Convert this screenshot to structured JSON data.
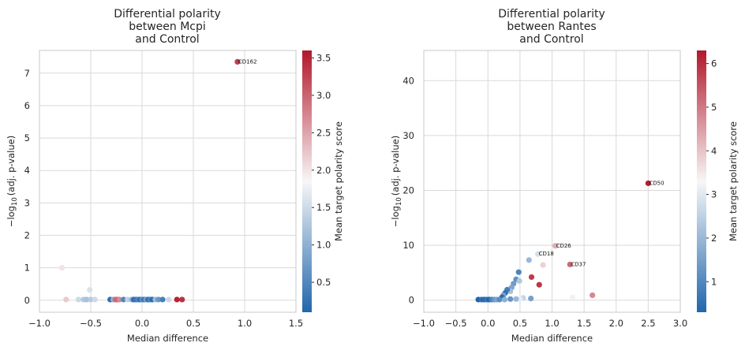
{
  "colors": {
    "low": "#2166ac",
    "mid": "#f7f7f7",
    "high": "#b2182b",
    "grid": "#d9d9d9",
    "spine": "#c8c8c8"
  },
  "chart_data": [
    {
      "type": "scatter",
      "title": [
        "Differential polarity",
        "between Mcpi",
        "and Control"
      ],
      "xlabel": "Median difference",
      "ylabel_prefix": "−log",
      "ylabel_sub": "10",
      "ylabel_suffix": "(adj. p-value)",
      "xlim": [
        -1.0,
        1.5
      ],
      "ylim": [
        -0.37,
        7.7
      ],
      "xticks": [
        -1.0,
        -0.5,
        0.0,
        0.5,
        1.0,
        1.5
      ],
      "xtick_labels": [
        "−1.0",
        "−0.5",
        "0.0",
        "0.5",
        "1.0",
        "1.5"
      ],
      "yticks": [
        0,
        1,
        2,
        3,
        4,
        5,
        6,
        7
      ],
      "ytick_labels": [
        "0",
        "1",
        "2",
        "3",
        "4",
        "5",
        "6",
        "7"
      ],
      "grid": true,
      "colorbar": {
        "label": "Mean target polarity score",
        "range": [
          0.1,
          3.6
        ],
        "ticks": [
          0.5,
          1.0,
          1.5,
          2.0,
          2.5,
          3.0,
          3.5
        ],
        "tick_labels": [
          "0.5",
          "1.0",
          "1.5",
          "2.0",
          "2.5",
          "3.0",
          "3.5"
        ]
      },
      "points": [
        {
          "x": 0.93,
          "y": 7.35,
          "c": 3.3,
          "label": "CD162"
        },
        {
          "x": -0.78,
          "y": 1.0,
          "c": 2.0
        },
        {
          "x": -0.51,
          "y": 0.32,
          "c": 1.6
        },
        {
          "x": -0.74,
          "y": 0.02,
          "c": 2.2
        },
        {
          "x": -0.62,
          "y": 0.02,
          "c": 1.5
        },
        {
          "x": -0.57,
          "y": 0.02,
          "c": 1.3
        },
        {
          "x": -0.54,
          "y": 0.02,
          "c": 1.2
        },
        {
          "x": -0.5,
          "y": 0.02,
          "c": 1.3
        },
        {
          "x": -0.46,
          "y": 0.02,
          "c": 1.5
        },
        {
          "x": -0.31,
          "y": 0.02,
          "c": 0.2
        },
        {
          "x": -0.28,
          "y": 0.02,
          "c": 1.0
        },
        {
          "x": -0.26,
          "y": 0.02,
          "c": 2.9
        },
        {
          "x": -0.24,
          "y": 0.02,
          "c": 3.0
        },
        {
          "x": -0.22,
          "y": 0.02,
          "c": 2.7
        },
        {
          "x": -0.18,
          "y": 0.02,
          "c": 0.5
        },
        {
          "x": -0.14,
          "y": 0.02,
          "c": 1.4
        },
        {
          "x": -0.1,
          "y": 0.02,
          "c": 1.0
        },
        {
          "x": -0.08,
          "y": 0.02,
          "c": 0.2
        },
        {
          "x": -0.06,
          "y": 0.02,
          "c": 0.3
        },
        {
          "x": -0.04,
          "y": 0.02,
          "c": 0.5
        },
        {
          "x": -0.02,
          "y": 0.02,
          "c": 0.2
        },
        {
          "x": 0.0,
          "y": 0.02,
          "c": 0.6
        },
        {
          "x": 0.02,
          "y": 0.02,
          "c": 0.3
        },
        {
          "x": 0.04,
          "y": 0.02,
          "c": 0.8
        },
        {
          "x": 0.06,
          "y": 0.02,
          "c": 0.2
        },
        {
          "x": 0.08,
          "y": 0.02,
          "c": 0.5
        },
        {
          "x": 0.1,
          "y": 0.02,
          "c": 0.2
        },
        {
          "x": 0.13,
          "y": 0.02,
          "c": 1.1
        },
        {
          "x": 0.16,
          "y": 0.02,
          "c": 0.7
        },
        {
          "x": 0.2,
          "y": 0.02,
          "c": 0.4
        },
        {
          "x": 0.26,
          "y": 0.02,
          "c": 1.5
        },
        {
          "x": 0.34,
          "y": 0.02,
          "c": 3.5
        },
        {
          "x": 0.39,
          "y": 0.02,
          "c": 3.4
        }
      ]
    },
    {
      "type": "scatter",
      "title": [
        "Differential polarity",
        "between Rantes",
        "and Control"
      ],
      "xlabel": "Median difference",
      "ylabel_prefix": "−log",
      "ylabel_sub": "10",
      "ylabel_suffix": "(adj. p-value)",
      "xlim": [
        -1.0,
        3.0
      ],
      "ylim": [
        -2.2,
        45.5
      ],
      "xticks": [
        -1.0,
        -0.5,
        0.0,
        0.5,
        1.0,
        1.5,
        2.0,
        2.5,
        3.0
      ],
      "xtick_labels": [
        "−1.0",
        "−0.5",
        "0.0",
        "0.5",
        "1.0",
        "1.5",
        "2.0",
        "2.5",
        "3.0"
      ],
      "yticks": [
        0,
        10,
        20,
        30,
        40
      ],
      "ytick_labels": [
        "0",
        "10",
        "20",
        "30",
        "40"
      ],
      "grid": true,
      "colorbar": {
        "label": "Mean target polarity score",
        "range": [
          0.3,
          6.3
        ],
        "ticks": [
          1,
          2,
          3,
          4,
          5,
          6
        ],
        "tick_labels": [
          "1",
          "2",
          "3",
          "4",
          "5",
          "6"
        ]
      },
      "points": [
        {
          "x": 2.5,
          "y": 21.3,
          "c": 6.2,
          "label": "CD50"
        },
        {
          "x": 1.05,
          "y": 9.9,
          "c": 4.3,
          "label": "CD26"
        },
        {
          "x": 0.78,
          "y": 8.4,
          "c": 2.8,
          "label": "CD18"
        },
        {
          "x": 1.28,
          "y": 6.5,
          "c": 5.2,
          "label": "CD37"
        },
        {
          "x": 0.86,
          "y": 6.4,
          "c": 3.8
        },
        {
          "x": 0.64,
          "y": 7.3,
          "c": 2.0
        },
        {
          "x": 0.48,
          "y": 5.1,
          "c": 0.9
        },
        {
          "x": 0.68,
          "y": 4.2,
          "c": 5.8
        },
        {
          "x": 0.8,
          "y": 2.8,
          "c": 5.9
        },
        {
          "x": 0.44,
          "y": 3.8,
          "c": 1.2
        },
        {
          "x": 0.49,
          "y": 3.5,
          "c": 2.3
        },
        {
          "x": 0.4,
          "y": 3.0,
          "c": 1.4
        },
        {
          "x": 0.37,
          "y": 2.3,
          "c": 1.6
        },
        {
          "x": 0.35,
          "y": 1.6,
          "c": 2.2
        },
        {
          "x": 0.3,
          "y": 1.9,
          "c": 0.8
        },
        {
          "x": 0.27,
          "y": 1.3,
          "c": 0.5
        },
        {
          "x": 0.24,
          "y": 0.9,
          "c": 1.5
        },
        {
          "x": 0.22,
          "y": 0.5,
          "c": 0.4
        },
        {
          "x": 1.63,
          "y": 0.9,
          "c": 4.8
        },
        {
          "x": 1.32,
          "y": 0.5,
          "c": 3.2
        },
        {
          "x": 0.67,
          "y": 0.3,
          "c": 1.5
        },
        {
          "x": 0.55,
          "y": 0.4,
          "c": 2.6
        },
        {
          "x": 0.5,
          "y": 0.2,
          "c": 3.1
        },
        {
          "x": 0.44,
          "y": 0.2,
          "c": 2.0
        },
        {
          "x": 0.35,
          "y": 0.2,
          "c": 1.3
        },
        {
          "x": -0.15,
          "y": 0.1,
          "c": 0.3
        },
        {
          "x": -0.1,
          "y": 0.1,
          "c": 0.5
        },
        {
          "x": -0.06,
          "y": 0.1,
          "c": 0.4
        },
        {
          "x": -0.02,
          "y": 0.1,
          "c": 0.6
        },
        {
          "x": 0.02,
          "y": 0.1,
          "c": 0.3
        },
        {
          "x": 0.06,
          "y": 0.1,
          "c": 0.9
        },
        {
          "x": 0.1,
          "y": 0.1,
          "c": 1.3
        },
        {
          "x": 0.14,
          "y": 0.1,
          "c": 1.6
        },
        {
          "x": 0.18,
          "y": 0.1,
          "c": 1.1
        },
        {
          "x": 0.26,
          "y": 0.1,
          "c": 1.8
        }
      ]
    }
  ]
}
